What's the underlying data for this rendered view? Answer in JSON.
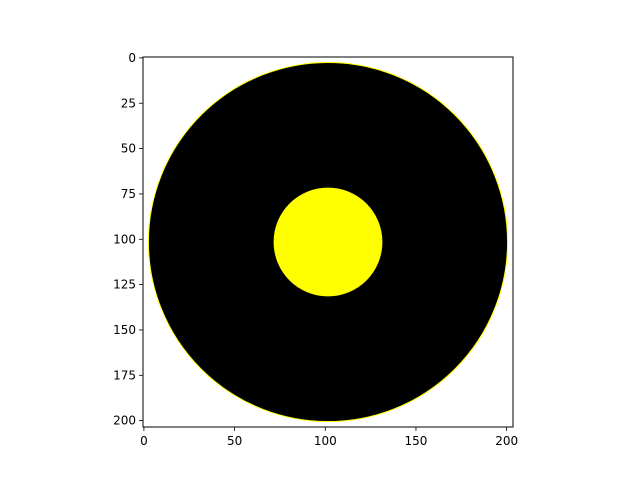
{
  "chart_data": {
    "type": "heatmap",
    "title": "",
    "xlabel": "",
    "ylabel": "",
    "image_size": [
      204,
      204
    ],
    "xlim": [
      -0.5,
      203.5
    ],
    "ylim": [
      203.5,
      -0.5
    ],
    "x_ticks": [
      0,
      50,
      100,
      150,
      200
    ],
    "y_ticks": [
      0,
      25,
      50,
      75,
      100,
      125,
      150,
      175,
      200
    ],
    "x_tick_labels": [
      "0",
      "50",
      "100",
      "150",
      "200"
    ],
    "y_tick_labels": [
      "0",
      "25",
      "50",
      "75",
      "100",
      "125",
      "150",
      "175",
      "200"
    ],
    "background_color": "#ffffff",
    "regions": [
      {
        "shape": "disk",
        "center": [
          101.5,
          101.5
        ],
        "radius": 99,
        "color": "#000000"
      },
      {
        "shape": "disk",
        "center": [
          101.5,
          101.5
        ],
        "radius": 30,
        "color": "#ffff00"
      }
    ],
    "ring_edge_color": "#ffff00",
    "grid": false
  }
}
